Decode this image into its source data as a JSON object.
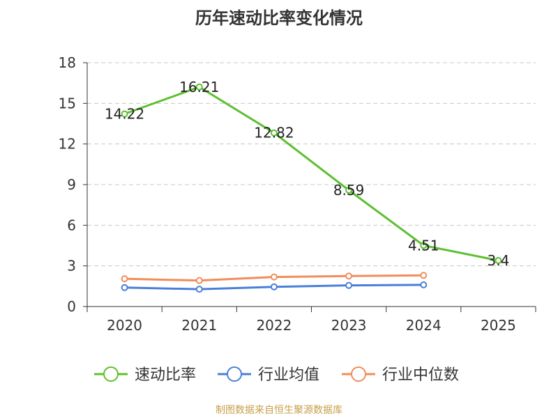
{
  "chart_data": {
    "type": "line",
    "title": "历年速动比率变化情况",
    "categories": [
      "2020",
      "2021",
      "2022",
      "2023",
      "2024",
      "2025"
    ],
    "ylim": [
      0,
      18
    ],
    "yticks": [
      0,
      3,
      6,
      9,
      12,
      15,
      18
    ],
    "grid": true,
    "legend_position": "bottom",
    "series": [
      {
        "name": "速动比率",
        "color": "#5cc02e",
        "values": [
          14.22,
          16.21,
          12.82,
          8.59,
          4.51,
          3.4
        ],
        "labels": [
          "14.22",
          "16.21",
          "12.82",
          "8.59",
          "4.51",
          "3.4"
        ]
      },
      {
        "name": "行业均值",
        "color": "#4a7fd8",
        "values": [
          1.4,
          1.28,
          1.45,
          1.56,
          1.6,
          null
        ]
      },
      {
        "name": "行业中位数",
        "color": "#f28c5a",
        "values": [
          2.05,
          1.92,
          2.18,
          2.25,
          2.3,
          null
        ]
      }
    ]
  },
  "footer": {
    "source": "制图数据来自恒生聚源数据库"
  }
}
